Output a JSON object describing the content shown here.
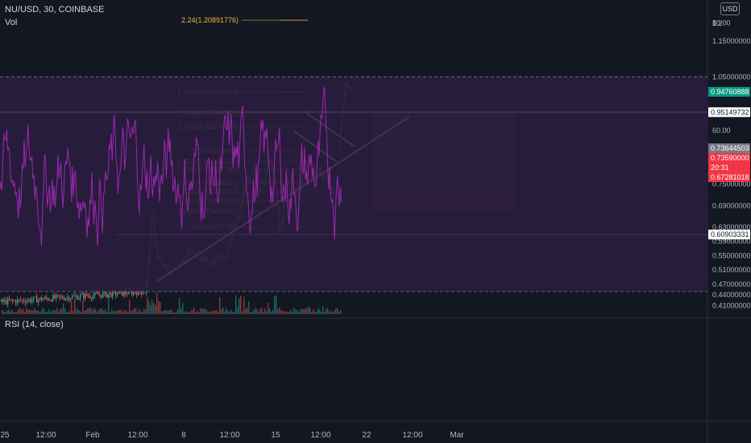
{
  "header": {
    "symbol": "NU/USD, 30, COINBASE",
    "volume_label": "Vol",
    "currency": "USD",
    "rsi_label": "RSI (14, close)"
  },
  "colors": {
    "background": "#131722",
    "bull": "#26a69a",
    "bear": "#ef5350",
    "fib": "#f0b63a",
    "rsi_line": "#9c27b0",
    "rsi_band": "#2a1d3e",
    "price_tag": "#787b86",
    "target_zone": "#1c4a4a",
    "stop_zone": "#5a2a30"
  },
  "chart_data": [
    {
      "type": "candlestick",
      "ylim": [
        0.38,
        1.255
      ],
      "y_ticks": [
        "1.2",
        "1.15000000",
        "1.05000000",
        "0.85000000",
        "0.75000000",
        "0.69000000",
        "0.63000000",
        "0.59000000",
        "0.55000000",
        "0.51000000",
        "0.47000000",
        "0.44000000",
        "0.41000000"
      ],
      "x_ticks": [
        "25",
        "12:00",
        "Feb",
        "12:00",
        "8",
        "12:00",
        "15",
        "12:00",
        "22",
        "12:00",
        "Mar"
      ],
      "price_path": [
        [
          0,
          0.42
        ],
        [
          180,
          0.45
        ],
        [
          188,
          0.67
        ],
        [
          195,
          0.54
        ],
        [
          210,
          0.5
        ],
        [
          235,
          0.56
        ],
        [
          260,
          0.53
        ],
        [
          280,
          0.55
        ],
        [
          290,
          0.63
        ],
        [
          300,
          0.72
        ],
        [
          312,
          0.8
        ],
        [
          322,
          0.74
        ],
        [
          332,
          0.82
        ],
        [
          340,
          0.75
        ],
        [
          346,
          0.6
        ],
        [
          352,
          0.72
        ],
        [
          360,
          0.78
        ],
        [
          368,
          0.67
        ],
        [
          376,
          0.82
        ],
        [
          385,
          0.79
        ],
        [
          395,
          0.78
        ],
        [
          405,
          0.76
        ],
        [
          415,
          0.72
        ],
        [
          422,
          0.74
        ]
      ],
      "fib_levels": [
        {
          "label": "0(0.62927297)",
          "value": 0.62927297
        },
        {
          "label": "0.236(0.67408553)",
          "value": 0.67408553
        },
        {
          "label": "0.382(0.70339199)",
          "value": 0.70339199
        },
        {
          "label": "0.5(0.72800637)",
          "value": 0.72800637
        },
        {
          "label": "0.618(0.75348197)",
          "value": 0.75348197
        },
        {
          "label": "0.786(0.79127781)",
          "value": 0.79127781
        },
        {
          "label": "0.878(0.81280464)",
          "value": 0.81280464
        },
        {
          "label": "1(0.84229864)",
          "value": 0.84229864
        },
        {
          "label": "1.272(0.91172092)",
          "value": 0.91172092
        },
        {
          "label": "1.414(0.95024870)",
          "value": 0.9502487
        },
        {
          "label": "1.618(1.00846519)",
          "value": 1.00846519
        },
        {
          "label": "2.24(1.20891776)",
          "value": 1.20891776
        }
      ],
      "horizontal_lines": [
        {
          "label": "0.95149732",
          "value": 0.95149732
        },
        {
          "label": "0.60903331",
          "value": 0.60903331
        }
      ],
      "price_labels": [
        {
          "label": "0.94760888",
          "value": 0.94760888,
          "color": "#089981"
        },
        {
          "label": "0.73644503",
          "value": 0.73644503,
          "color": "#787b86"
        },
        {
          "label": "0.73590000",
          "value": 0.7359,
          "color": "#f23645"
        },
        {
          "label": "20:31",
          "value": 0.7,
          "color": "#f23645"
        },
        {
          "label": "0.67281018",
          "value": 0.67281018,
          "color": "#f23645"
        }
      ],
      "long_position": {
        "target": 0.95149732,
        "entry": 0.7359,
        "stop": 0.67281018
      }
    },
    {
      "type": "line",
      "name": "RSI (14, close)",
      "ylim": [
        27,
        88
      ],
      "y_ticks": [
        "80.00",
        "60.00",
        "40.00"
      ],
      "bands": [
        30,
        70
      ]
    }
  ]
}
